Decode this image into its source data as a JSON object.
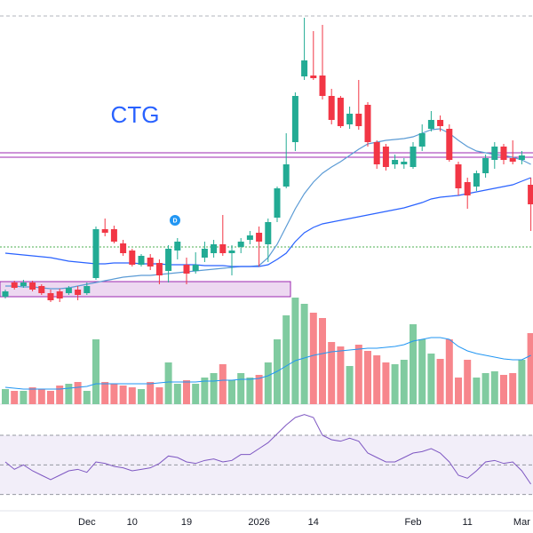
{
  "chart_data": {
    "type": "candlestick",
    "title": "CTG",
    "marker": "D",
    "categories": [
      null,
      null,
      null,
      null,
      null,
      null,
      null,
      null,
      null,
      "Dec",
      null,
      null,
      null,
      null,
      "10",
      null,
      null,
      null,
      null,
      null,
      "19",
      null,
      null,
      null,
      null,
      null,
      null,
      null,
      "2026",
      null,
      null,
      null,
      null,
      null,
      "14",
      null,
      null,
      null,
      null,
      null,
      null,
      null,
      null,
      null,
      null,
      "Feb",
      null,
      null,
      null,
      null,
      null,
      "11",
      null,
      null,
      null,
      null,
      null,
      "Mar",
      null
    ],
    "open": [
      6,
      22,
      18,
      22,
      18,
      10,
      12,
      10,
      14,
      10,
      27,
      82,
      82,
      66,
      58,
      42,
      50,
      44,
      35,
      58,
      42,
      35,
      50,
      55,
      65,
      55,
      62,
      70,
      78,
      65,
      95,
      130,
      180,
      254,
      255,
      255,
      232,
      230,
      200,
      212,
      222,
      180,
      175,
      155,
      155,
      152,
      175,
      195,
      205,
      195,
      155,
      135,
      130,
      145,
      160,
      175,
      162,
      160,
      132
    ],
    "high": [
      14,
      24,
      25,
      24,
      20,
      14,
      15,
      18,
      18,
      22,
      85,
      94,
      86,
      70,
      60,
      54,
      54,
      48,
      64,
      72,
      50,
      56,
      68,
      70,
      98,
      64,
      72,
      80,
      85,
      94,
      130,
      190,
      236,
      320,
      305,
      312,
      240,
      232,
      220,
      250,
      225,
      182,
      178,
      166,
      162,
      180,
      200,
      215,
      210,
      200,
      158,
      140,
      148,
      166,
      180,
      178,
      182,
      170,
      140
    ],
    "low": [
      4,
      14,
      16,
      12,
      8,
      0,
      0,
      8,
      2,
      8,
      25,
      74,
      66,
      52,
      40,
      40,
      36,
      20,
      22,
      48,
      20,
      32,
      45,
      50,
      52,
      30,
      55,
      65,
      40,
      45,
      90,
      128,
      170,
      250,
      250,
      228,
      200,
      196,
      195,
      194,
      175,
      150,
      148,
      150,
      150,
      150,
      170,
      192,
      192,
      158,
      120,
      105,
      125,
      140,
      150,
      155,
      155,
      155,
      80
    ],
    "close": [
      12,
      16,
      22,
      14,
      10,
      2,
      4,
      16,
      8,
      18,
      82,
      78,
      68,
      55,
      42,
      52,
      40,
      30,
      60,
      68,
      32,
      42,
      60,
      65,
      55,
      58,
      68,
      75,
      68,
      90,
      128,
      155,
      232,
      272,
      252,
      232,
      205,
      198,
      212,
      198,
      180,
      155,
      152,
      160,
      158,
      175,
      190,
      205,
      198,
      160,
      128,
      120,
      145,
      162,
      175,
      160,
      158,
      165,
      110
    ],
    "ylim": [
      0,
      340
    ],
    "up_color": "#22ab94",
    "down_color": "#f23645",
    "ma": [
      {
        "color": "#5b9bd5",
        "values": [
          18,
          18,
          17,
          17,
          16,
          15,
          15,
          16,
          18,
          20,
          22,
          24,
          26,
          28,
          29,
          30,
          30,
          31,
          32,
          33,
          34,
          35,
          36,
          37,
          38,
          39,
          40,
          40,
          41,
          50,
          65,
          85,
          105,
          122,
          135,
          145,
          152,
          158,
          165,
          172,
          178,
          180,
          182,
          183,
          184,
          186,
          190,
          194,
          195,
          190,
          182,
          175,
          170,
          168,
          166,
          165,
          163,
          160,
          155
        ]
      },
      {
        "color": "#2962ff",
        "values": [
          55,
          54,
          53,
          52,
          51,
          50,
          48,
          46,
          45,
          44,
          43,
          43,
          44,
          44,
          44,
          43,
          43,
          43,
          42,
          42,
          42,
          42,
          41,
          41,
          41,
          40,
          40,
          40,
          40,
          42,
          48,
          55,
          68,
          78,
          84,
          88,
          90,
          92,
          94,
          96,
          98,
          100,
          102,
          104,
          106,
          109,
          112,
          116,
          118,
          119,
          120,
          122,
          124,
          126,
          128,
          130,
          132,
          136,
          140
        ]
      }
    ],
    "levels": [
      {
        "value": 168,
        "color": "#9c27b0"
      },
      {
        "value": 163,
        "color": "#9c27b0"
      },
      {
        "value": 62,
        "color": "#4caf50"
      }
    ],
    "zone": {
      "low": 6,
      "high": 23,
      "color": "#9c27b0"
    },
    "volume": [
      17,
      15,
      15,
      19,
      17,
      15,
      21,
      23,
      25,
      15,
      73,
      25,
      23,
      21,
      19,
      17,
      25,
      19,
      47,
      23,
      27,
      23,
      30,
      35,
      45,
      27,
      35,
      30,
      33,
      47,
      73,
      100,
      120,
      113,
      103,
      97,
      70,
      65,
      43,
      67,
      60,
      55,
      47,
      45,
      50,
      90,
      73,
      57,
      51,
      73,
      30,
      50,
      30,
      35,
      37,
      33,
      35,
      50,
      80
    ],
    "volume_ma": [
      19,
      18,
      17,
      17,
      17,
      17,
      17,
      18,
      19,
      20,
      23,
      23,
      23,
      23,
      23,
      23,
      23,
      24,
      25,
      25,
      25,
      25,
      26,
      26,
      27,
      27,
      28,
      28,
      29,
      32,
      37,
      43,
      49,
      52,
      55,
      57,
      59,
      60,
      61,
      62,
      63,
      63,
      64,
      65,
      67,
      71,
      73,
      75,
      75,
      73,
      65,
      60,
      57,
      55,
      53,
      51,
      50,
      50,
      55
    ],
    "volume_ylim": [
      0,
      130
    ],
    "volume_up_color": "#80cba0",
    "volume_down_color": "#f7868c",
    "volume_ma_color": "#2196f3",
    "rsi": [
      52,
      47,
      50,
      46,
      43,
      40,
      43,
      46,
      47,
      45,
      52,
      51,
      49,
      48,
      46,
      47,
      48,
      51,
      56,
      55,
      52,
      51,
      53,
      54,
      52,
      53,
      57,
      57,
      61,
      65,
      71,
      77,
      82,
      84,
      82,
      70,
      67,
      66,
      68,
      66,
      58,
      55,
      52,
      52,
      55,
      58,
      59,
      61,
      58,
      52,
      43,
      41,
      46,
      52,
      53,
      51,
      52,
      46,
      37
    ],
    "rsi_ylim": [
      25,
      85
    ],
    "rsi_levels": [
      70,
      50,
      30
    ],
    "rsi_color": "#7e57c2"
  }
}
